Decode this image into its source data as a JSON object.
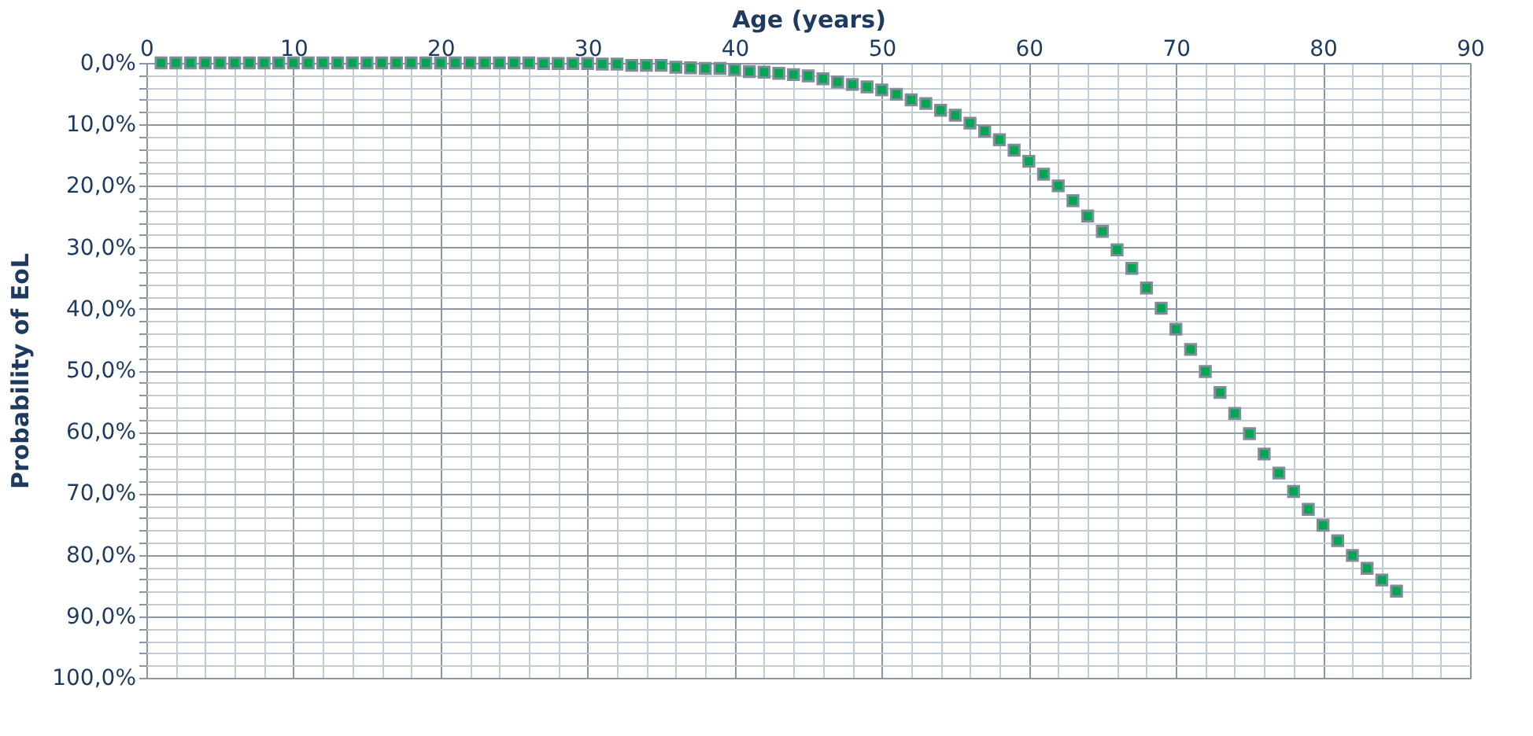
{
  "chart_data": {
    "type": "scatter",
    "xlabel": "Age (years)",
    "ylabel": "Probability of EoL",
    "x": [
      1,
      2,
      3,
      4,
      5,
      6,
      7,
      8,
      9,
      10,
      11,
      12,
      13,
      14,
      15,
      16,
      17,
      18,
      19,
      20,
      21,
      22,
      23,
      24,
      25,
      26,
      27,
      28,
      29,
      30,
      31,
      32,
      33,
      34,
      35,
      36,
      37,
      38,
      39,
      40,
      41,
      42,
      43,
      44,
      45,
      46,
      47,
      48,
      49,
      50,
      51,
      52,
      53,
      54,
      55,
      56,
      57,
      58,
      59,
      60,
      61,
      62,
      63,
      64,
      65,
      66,
      67,
      68,
      69,
      70,
      71,
      72,
      73,
      74,
      75,
      76,
      77,
      78,
      79,
      80,
      81,
      82,
      83,
      84,
      85
    ],
    "series": [
      {
        "color": "#00a651",
        "values": [
          0,
          0,
          0,
          0,
          0,
          0,
          0,
          0,
          0,
          0,
          0,
          0,
          0,
          0,
          0,
          0,
          0,
          0,
          0,
          0,
          0,
          0,
          0,
          0,
          0,
          0,
          0.1,
          0.1,
          0.1,
          0.1,
          0.2,
          0.2,
          0.4,
          0.4,
          0.4,
          0.7,
          0.8,
          0.9,
          0.9,
          1.1,
          1.4,
          1.5,
          1.7,
          1.9,
          2.1,
          2.6,
          3.1,
          3.5,
          3.9,
          4.4,
          5.1,
          6.0,
          6.6,
          7.7,
          8.5,
          9.8,
          11.1,
          12.5,
          14.2,
          16.0,
          18.1,
          20.0,
          22.4,
          24.9,
          27.4,
          30.4,
          33.4,
          36.6,
          39.9,
          43.3,
          46.6,
          50.2,
          53.6,
          57.0,
          60.3,
          63.6,
          66.7,
          69.7,
          72.6,
          75.2,
          77.7,
          80.1,
          82.2,
          84.1,
          85.9
        ]
      }
    ],
    "marker": "square",
    "grid": true,
    "xlim": [
      0,
      90
    ],
    "xticks": [
      0,
      {
        "value": 2,
        "label": null
      },
      {
        "value": 4,
        "label": null
      },
      {
        "value": 6,
        "label": null
      },
      {
        "value": 8,
        "label": null
      },
      10,
      {
        "value": 12,
        "label": null
      },
      {
        "value": 14,
        "label": null
      },
      {
        "value": 16,
        "label": null
      },
      {
        "value": 18,
        "label": null
      },
      20,
      {
        "value": 22,
        "label": null
      },
      {
        "value": 24,
        "label": null
      },
      {
        "value": 26,
        "label": null
      },
      {
        "value": 28,
        "label": null
      },
      30,
      {
        "value": 32,
        "label": null
      },
      {
        "value": 34,
        "label": null
      },
      {
        "value": 36,
        "label": null
      },
      {
        "value": 38,
        "label": null
      },
      40,
      {
        "value": 42,
        "label": null
      },
      {
        "value": 44,
        "label": null
      },
      {
        "value": 46,
        "label": null
      },
      {
        "value": 48,
        "label": null
      },
      50,
      {
        "value": 52,
        "label": null
      },
      {
        "value": 54,
        "label": null
      },
      {
        "value": 56,
        "label": null
      },
      {
        "value": 58,
        "label": null
      },
      60,
      {
        "value": 62,
        "label": null
      },
      {
        "value": 64,
        "label": null
      },
      {
        "value": 66,
        "label": null
      },
      {
        "value": 68,
        "label": null
      },
      70,
      {
        "value": 72,
        "label": null
      },
      {
        "value": 74,
        "label": null
      },
      {
        "value": 76,
        "label": null
      },
      {
        "value": 78,
        "label": null
      },
      80,
      {
        "value": 82,
        "label": null
      },
      {
        "value": 84,
        "label": null
      },
      {
        "value": 86,
        "label": null
      },
      {
        "value": 88,
        "label": null
      },
      90
    ],
    "ylim": [
      100,
      0
    ],
    "yticks": [
      {
        "value": 0,
        "label": "0,0%"
      },
      {
        "value": 2,
        "label": null
      },
      {
        "value": 4,
        "label": null
      },
      {
        "value": 6,
        "label": null
      },
      {
        "value": 8,
        "label": null
      },
      {
        "value": 10,
        "label": "10,0%"
      },
      {
        "value": 12,
        "label": null
      },
      {
        "value": 14,
        "label": null
      },
      {
        "value": 16,
        "label": null
      },
      {
        "value": 18,
        "label": null
      },
      {
        "value": 20,
        "label": "20,0%"
      },
      {
        "value": 22,
        "label": null
      },
      {
        "value": 24,
        "label": null
      },
      {
        "value": 26,
        "label": null
      },
      {
        "value": 28,
        "label": null
      },
      {
        "value": 30,
        "label": "30,0%"
      },
      {
        "value": 32,
        "label": null
      },
      {
        "value": 34,
        "label": null
      },
      {
        "value": 36,
        "label": null
      },
      {
        "value": 38,
        "label": null
      },
      {
        "value": 40,
        "label": "40,0%"
      },
      {
        "value": 42,
        "label": null
      },
      {
        "value": 44,
        "label": null
      },
      {
        "value": 46,
        "label": null
      },
      {
        "value": 48,
        "label": null
      },
      {
        "value": 50,
        "label": "50,0%"
      },
      {
        "value": 52,
        "label": null
      },
      {
        "value": 54,
        "label": null
      },
      {
        "value": 56,
        "label": null
      },
      {
        "value": 58,
        "label": null
      },
      {
        "value": 60,
        "label": "60,0%"
      },
      {
        "value": 62,
        "label": null
      },
      {
        "value": 64,
        "label": null
      },
      {
        "value": 66,
        "label": null
      },
      {
        "value": 68,
        "label": null
      },
      {
        "value": 70,
        "label": "70,0%"
      },
      {
        "value": 72,
        "label": null
      },
      {
        "value": 74,
        "label": null
      },
      {
        "value": 76,
        "label": null
      },
      {
        "value": 78,
        "label": null
      },
      {
        "value": 80,
        "label": "80,0%"
      },
      {
        "value": 82,
        "label": null
      },
      {
        "value": 84,
        "label": null
      },
      {
        "value": 86,
        "label": null
      },
      {
        "value": 88,
        "label": null
      },
      {
        "value": 90,
        "label": "90,0%"
      },
      {
        "value": 92,
        "label": null
      },
      {
        "value": 94,
        "label": null
      },
      {
        "value": 96,
        "label": null
      },
      {
        "value": 98,
        "label": null
      },
      {
        "value": 100,
        "label": "100,0%"
      }
    ]
  }
}
